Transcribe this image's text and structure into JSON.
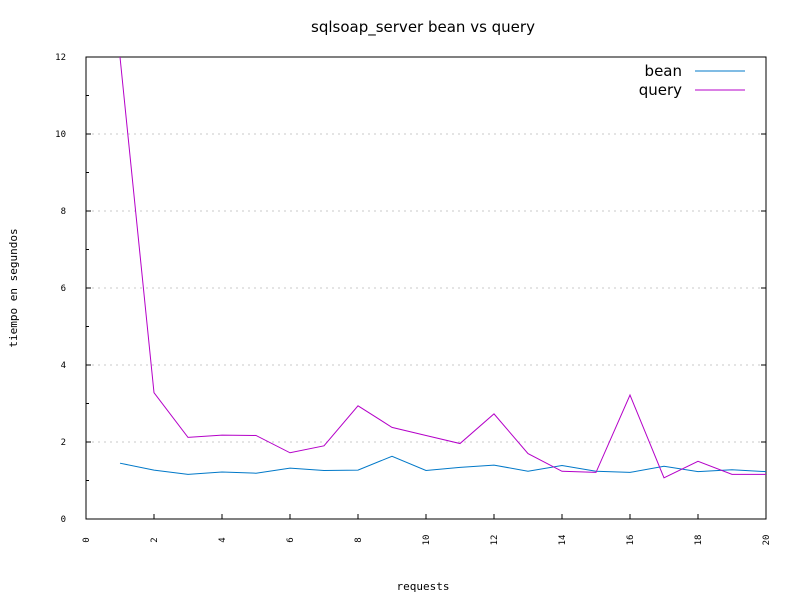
{
  "chart_data": {
    "type": "line",
    "title": "sqlsoap_server bean vs query",
    "xlabel": "requests",
    "ylabel": "tiempo en segundos",
    "xlim": [
      0,
      20
    ],
    "ylim": [
      0,
      12
    ],
    "x_ticks": [
      0,
      2,
      4,
      6,
      8,
      10,
      12,
      14,
      16,
      18,
      20
    ],
    "y_ticks": [
      0,
      2,
      4,
      6,
      8,
      10,
      12
    ],
    "grid": "horizontal dotted",
    "legend_position": "top-right",
    "series": [
      {
        "name": "bean",
        "color": "#0078c8",
        "x": [
          1,
          2,
          3,
          4,
          5,
          6,
          7,
          8,
          9,
          10,
          11,
          12,
          13,
          14,
          15,
          16,
          17,
          18,
          19,
          20
        ],
        "values": [
          1.45,
          1.27,
          1.16,
          1.22,
          1.19,
          1.32,
          1.26,
          1.27,
          1.63,
          1.26,
          1.34,
          1.4,
          1.24,
          1.39,
          1.24,
          1.21,
          1.37,
          1.23,
          1.28,
          1.23
        ]
      },
      {
        "name": "query",
        "color": "#b400c8",
        "x": [
          1,
          2,
          3,
          4,
          5,
          6,
          7,
          8,
          9,
          10,
          11,
          12,
          13,
          14,
          15,
          16,
          17,
          18,
          19,
          20
        ],
        "values": [
          12.0,
          3.28,
          2.12,
          2.18,
          2.17,
          1.72,
          1.9,
          2.94,
          2.38,
          2.17,
          1.96,
          2.73,
          1.7,
          1.24,
          1.21,
          3.22,
          1.07,
          1.5,
          1.16,
          1.16
        ]
      }
    ]
  }
}
